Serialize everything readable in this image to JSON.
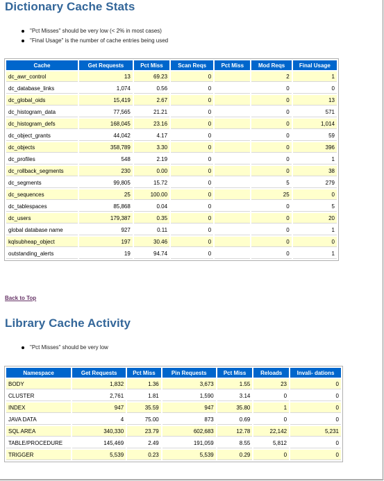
{
  "dictionary": {
    "title": "Dictionary Cache Stats",
    "notes": [
      "\"Pct Misses\" should be very low (< 2% in most cases)",
      "\"Final Usage\" is the number of cache entries being used"
    ],
    "headers": [
      "Cache",
      "Get Requests",
      "Pct Miss",
      "Scan Reqs",
      "Pct Miss",
      "Mod Reqs",
      "Final Usage"
    ],
    "rows": [
      [
        "dc_awr_control",
        "13",
        "69.23",
        "0",
        "",
        "2",
        "1"
      ],
      [
        "dc_database_links",
        "1,074",
        "0.56",
        "0",
        "",
        "0",
        "0"
      ],
      [
        "dc_global_oids",
        "15,419",
        "2.67",
        "0",
        "",
        "0",
        "13"
      ],
      [
        "dc_histogram_data",
        "77,565",
        "21.21",
        "0",
        "",
        "0",
        "571"
      ],
      [
        "dc_histogram_defs",
        "168,045",
        "23.16",
        "0",
        "",
        "0",
        "1,014"
      ],
      [
        "dc_object_grants",
        "44,042",
        "4.17",
        "0",
        "",
        "0",
        "59"
      ],
      [
        "dc_objects",
        "358,789",
        "3.30",
        "0",
        "",
        "0",
        "396"
      ],
      [
        "dc_profiles",
        "548",
        "2.19",
        "0",
        "",
        "0",
        "1"
      ],
      [
        "dc_rollback_segments",
        "230",
        "0.00",
        "0",
        "",
        "0",
        "38"
      ],
      [
        "dc_segments",
        "99,805",
        "15.72",
        "0",
        "",
        "5",
        "279"
      ],
      [
        "dc_sequences",
        "25",
        "100.00",
        "0",
        "",
        "25",
        "0"
      ],
      [
        "dc_tablespaces",
        "85,868",
        "0.04",
        "0",
        "",
        "0",
        "5"
      ],
      [
        "dc_users",
        "179,387",
        "0.35",
        "0",
        "",
        "0",
        "20"
      ],
      [
        "global database name",
        "927",
        "0.11",
        "0",
        "",
        "0",
        "1"
      ],
      [
        "kqlsubheap_object",
        "197",
        "30.46",
        "0",
        "",
        "0",
        "0"
      ],
      [
        "outstanding_alerts",
        "19",
        "94.74",
        "0",
        "",
        "0",
        "1"
      ]
    ]
  },
  "back_to_top": "Back to Top",
  "library": {
    "title": "Library Cache Activity",
    "notes": [
      "\"Pct Misses\" should be very low"
    ],
    "headers": [
      "Namespace",
      "Get Requests",
      "Pct Miss",
      "Pin Requests",
      "Pct Miss",
      "Reloads",
      "Invali- dations"
    ],
    "rows": [
      [
        "BODY",
        "1,832",
        "1.36",
        "3,673",
        "1.55",
        "23",
        "0"
      ],
      [
        "CLUSTER",
        "2,761",
        "1.81",
        "1,590",
        "3.14",
        "0",
        "0"
      ],
      [
        "INDEX",
        "947",
        "35.59",
        "947",
        "35.80",
        "1",
        "0"
      ],
      [
        "JAVA DATA",
        "4",
        "75.00",
        "873",
        "0.69",
        "0",
        "0"
      ],
      [
        "SQL AREA",
        "340,330",
        "23.79",
        "602,683",
        "12.78",
        "22,142",
        "5,231"
      ],
      [
        "TABLE/PROCEDURE",
        "145,469",
        "2.49",
        "191,059",
        "8.55",
        "5,812",
        "0"
      ],
      [
        "TRIGGER",
        "5,539",
        "0.23",
        "5,539",
        "0.29",
        "0",
        "0"
      ]
    ]
  }
}
